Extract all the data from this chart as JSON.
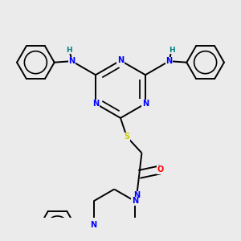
{
  "background_color": "#ebebeb",
  "atom_colors": {
    "N": "#0000ff",
    "NH_H": "#008080",
    "S": "#cccc00",
    "O": "#ff0000",
    "C": "#000000"
  },
  "bond_color": "#000000",
  "bond_width": 1.4,
  "figsize": [
    3.0,
    3.0
  ],
  "dpi": 100
}
